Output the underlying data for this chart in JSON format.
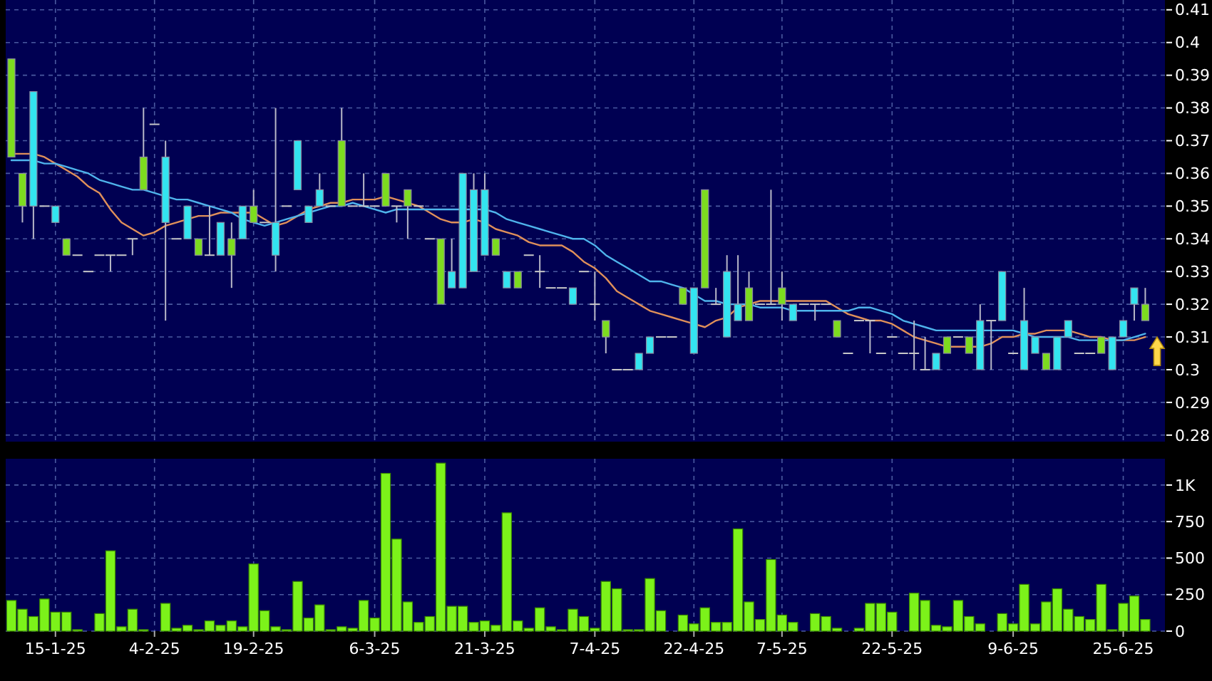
{
  "chart_data": [
    {
      "type": "candlestick",
      "tick_labels": "y",
      "grid": true,
      "colors": [
        "#7ddc1f",
        "#7ddc1f",
        "#33e4f0",
        "#c8c8c8",
        "#33e4f0",
        "#7ddc1f",
        "#c8c8c8",
        "#c8c8c8",
        "#c8c8c8",
        "#c8c8c8",
        "#c8c8c8",
        "#c8c8c8",
        "#7ddc1f",
        "#c8c8c8",
        "#33e4f0",
        "#c8c8c8",
        "#33e4f0",
        "#7ddc1f",
        "#c8c8c8",
        "#33e4f0",
        "#7ddc1f",
        "#33e4f0",
        "#7ddc1f",
        "#c8c8c8",
        "#33e4f0",
        "#c8c8c8",
        "#33e4f0",
        "#33e4f0",
        "#33e4f0",
        "#c8c8c8",
        "#7ddc1f",
        "#c8c8c8",
        "#c8c8c8",
        "#c8c8c8",
        "#7ddc1f",
        "#c8c8c8",
        "#7ddc1f",
        "#c8c8c8",
        "#c8c8c8",
        "#7ddc1f",
        "#33e4f0",
        "#33e4f0",
        "#33e4f0",
        "#33e4f0",
        "#7ddc1f",
        "#33e4f0",
        "#7ddc1f",
        "#c8c8c8",
        "#c8c8c8",
        "#c8c8c8",
        "#c8c8c8",
        "#33e4f0",
        "#c8c8c8",
        "#c8c8c8",
        "#7ddc1f",
        "#c8c8c8",
        "#c8c8c8",
        "#33e4f0",
        "#33e4f0",
        "#c8c8c8",
        "#c8c8c8",
        "#7ddc1f",
        "#33e4f0",
        "#7ddc1f",
        "#c8c8c8",
        "#33e4f0",
        "#33e4f0",
        "#7ddc1f",
        "#c8c8c8",
        "#c8c8c8",
        "#7ddc1f",
        "#33e4f0",
        "#c8c8c8",
        "#c8c8c8",
        "#c8c8c8",
        "#7ddc1f",
        "#c8c8c8",
        "#c8c8c8",
        "#c8c8c8",
        "#c8c8c8",
        "#c8c8c8",
        "#c8c8c8",
        "#c8c8c8",
        "#c8c8c8",
        "#33e4f0",
        "#7ddc1f",
        "#c8c8c8",
        "#7ddc1f",
        "#33e4f0",
        "#c8c8c8",
        "#33e4f0",
        "#c8c8c8",
        "#33e4f0",
        "#33e4f0",
        "#7ddc1f",
        "#33e4f0",
        "#33e4f0",
        "#c8c8c8",
        "#c8c8c8",
        "#7ddc1f",
        "#33e4f0",
        "#33e4f0",
        "#33e4f0",
        "#7ddc1f"
      ],
      "ohlc": [
        [
          0.365,
          0.395,
          0.365,
          0.395
        ],
        [
          0.35,
          0.36,
          0.345,
          0.36
        ],
        [
          0.385,
          0.385,
          0.34,
          0.35
        ],
        [
          0.35,
          0.35,
          0.35,
          0.35
        ],
        [
          0.35,
          0.35,
          0.345,
          0.345
        ],
        [
          0.335,
          0.34,
          0.335,
          0.34
        ],
        [
          0.335,
          0.335,
          0.335,
          0.335
        ],
        [
          0.33,
          0.33,
          0.33,
          0.33
        ],
        [
          0.335,
          0.335,
          0.335,
          0.335
        ],
        [
          0.335,
          0.335,
          0.33,
          0.335
        ],
        [
          0.335,
          0.335,
          0.335,
          0.335
        ],
        [
          0.34,
          0.34,
          0.335,
          0.34
        ],
        [
          0.355,
          0.38,
          0.355,
          0.365
        ],
        [
          0.375,
          0.375,
          0.375,
          0.375
        ],
        [
          0.365,
          0.37,
          0.315,
          0.345
        ],
        [
          0.34,
          0.34,
          0.34,
          0.34
        ],
        [
          0.35,
          0.35,
          0.34,
          0.34
        ],
        [
          0.335,
          0.34,
          0.335,
          0.34
        ],
        [
          0.335,
          0.35,
          0.335,
          0.335
        ],
        [
          0.345,
          0.345,
          0.335,
          0.335
        ],
        [
          0.335,
          0.345,
          0.325,
          0.34
        ],
        [
          0.35,
          0.35,
          0.34,
          0.34
        ],
        [
          0.345,
          0.355,
          0.345,
          0.35
        ],
        [
          0.345,
          0.345,
          0.345,
          0.345
        ],
        [
          0.345,
          0.38,
          0.33,
          0.335
        ],
        [
          0.35,
          0.35,
          0.35,
          0.35
        ],
        [
          0.37,
          0.37,
          0.355,
          0.355
        ],
        [
          0.35,
          0.35,
          0.345,
          0.345
        ],
        [
          0.355,
          0.36,
          0.35,
          0.35
        ],
        [
          0.35,
          0.35,
          0.35,
          0.35
        ],
        [
          0.35,
          0.38,
          0.35,
          0.37
        ],
        [
          0.35,
          0.35,
          0.35,
          0.35
        ],
        [
          0.35,
          0.36,
          0.35,
          0.35
        ],
        [
          0.35,
          0.35,
          0.35,
          0.35
        ],
        [
          0.35,
          0.36,
          0.35,
          0.36
        ],
        [
          0.35,
          0.35,
          0.345,
          0.35
        ],
        [
          0.35,
          0.355,
          0.34,
          0.355
        ],
        [
          0.35,
          0.35,
          0.35,
          0.35
        ],
        [
          0.34,
          0.34,
          0.34,
          0.34
        ],
        [
          0.32,
          0.34,
          0.32,
          0.34
        ],
        [
          0.33,
          0.34,
          0.325,
          0.325
        ],
        [
          0.36,
          0.36,
          0.325,
          0.325
        ],
        [
          0.355,
          0.36,
          0.33,
          0.33
        ],
        [
          0.355,
          0.36,
          0.335,
          0.335
        ],
        [
          0.335,
          0.34,
          0.335,
          0.34
        ],
        [
          0.33,
          0.33,
          0.325,
          0.325
        ],
        [
          0.325,
          0.33,
          0.325,
          0.33
        ],
        [
          0.335,
          0.335,
          0.335,
          0.335
        ],
        [
          0.33,
          0.335,
          0.325,
          0.33
        ],
        [
          0.325,
          0.325,
          0.325,
          0.325
        ],
        [
          0.325,
          0.325,
          0.325,
          0.325
        ],
        [
          0.325,
          0.325,
          0.32,
          0.32
        ],
        [
          0.33,
          0.33,
          0.33,
          0.33
        ],
        [
          0.32,
          0.33,
          0.315,
          0.32
        ],
        [
          0.31,
          0.315,
          0.305,
          0.315
        ],
        [
          0.3,
          0.3,
          0.3,
          0.3
        ],
        [
          0.3,
          0.3,
          0.3,
          0.3
        ],
        [
          0.305,
          0.305,
          0.3,
          0.3
        ],
        [
          0.31,
          0.31,
          0.305,
          0.305
        ],
        [
          0.31,
          0.31,
          0.31,
          0.31
        ],
        [
          0.31,
          0.31,
          0.31,
          0.31
        ],
        [
          0.32,
          0.325,
          0.32,
          0.325
        ],
        [
          0.325,
          0.325,
          0.305,
          0.305
        ],
        [
          0.325,
          0.355,
          0.325,
          0.355
        ],
        [
          0.32,
          0.325,
          0.32,
          0.32
        ],
        [
          0.33,
          0.335,
          0.31,
          0.31
        ],
        [
          0.32,
          0.335,
          0.315,
          0.315
        ],
        [
          0.315,
          0.33,
          0.315,
          0.325
        ],
        [
          0.32,
          0.32,
          0.32,
          0.32
        ],
        [
          0.32,
          0.355,
          0.32,
          0.32
        ],
        [
          0.32,
          0.33,
          0.315,
          0.325
        ],
        [
          0.32,
          0.32,
          0.315,
          0.315
        ],
        [
          0.32,
          0.32,
          0.32,
          0.32
        ],
        [
          0.32,
          0.32,
          0.315,
          0.32
        ],
        [
          0.32,
          0.32,
          0.32,
          0.32
        ],
        [
          0.31,
          0.315,
          0.31,
          0.315
        ],
        [
          0.305,
          0.305,
          0.305,
          0.305
        ],
        [
          0.315,
          0.315,
          0.315,
          0.315
        ],
        [
          0.315,
          0.315,
          0.305,
          0.315
        ],
        [
          0.305,
          0.305,
          0.305,
          0.305
        ],
        [
          0.31,
          0.31,
          0.31,
          0.31
        ],
        [
          0.305,
          0.305,
          0.305,
          0.305
        ],
        [
          0.305,
          0.315,
          0.3,
          0.305
        ],
        [
          0.3,
          0.31,
          0.3,
          0.3
        ],
        [
          0.305,
          0.305,
          0.3,
          0.3
        ],
        [
          0.305,
          0.31,
          0.305,
          0.31
        ],
        [
          0.31,
          0.31,
          0.31,
          0.31
        ],
        [
          0.305,
          0.31,
          0.305,
          0.31
        ],
        [
          0.315,
          0.32,
          0.3,
          0.3
        ],
        [
          0.315,
          0.315,
          0.3,
          0.315
        ],
        [
          0.33,
          0.33,
          0.315,
          0.315
        ],
        [
          0.305,
          0.305,
          0.305,
          0.305
        ],
        [
          0.315,
          0.325,
          0.3,
          0.3
        ],
        [
          0.31,
          0.31,
          0.305,
          0.305
        ],
        [
          0.3,
          0.305,
          0.3,
          0.305
        ],
        [
          0.31,
          0.31,
          0.3,
          0.3
        ],
        [
          0.315,
          0.315,
          0.31,
          0.31
        ],
        [
          0.305,
          0.305,
          0.305,
          0.305
        ],
        [
          0.305,
          0.305,
          0.305,
          0.305
        ],
        [
          0.305,
          0.31,
          0.305,
          0.31
        ],
        [
          0.31,
          0.31,
          0.3,
          0.3
        ],
        [
          0.315,
          0.315,
          0.31,
          0.31
        ],
        [
          0.325,
          0.325,
          0.315,
          0.32
        ],
        [
          0.315,
          0.325,
          0.315,
          0.32
        ]
      ],
      "series": [
        {
          "type": "line",
          "color": "#e0905a",
          "values": [
            0.366,
            0.366,
            0.366,
            0.365,
            0.363,
            0.361,
            0.359,
            0.356,
            0.354,
            0.349,
            0.345,
            0.343,
            0.341,
            0.342,
            0.344,
            0.345,
            0.346,
            0.347,
            0.347,
            0.348,
            0.348,
            0.348,
            0.348,
            0.346,
            0.344,
            0.345,
            0.347,
            0.349,
            0.35,
            0.351,
            0.351,
            0.352,
            0.352,
            0.352,
            0.353,
            0.352,
            0.351,
            0.35,
            0.348,
            0.346,
            0.345,
            0.345,
            0.346,
            0.345,
            0.343,
            0.342,
            0.341,
            0.339,
            0.338,
            0.338,
            0.338,
            0.336,
            0.333,
            0.331,
            0.328,
            0.324,
            0.322,
            0.32,
            0.318,
            0.317,
            0.316,
            0.315,
            0.314,
            0.313,
            0.315,
            0.316,
            0.319,
            0.32,
            0.321,
            0.321,
            0.321,
            0.321,
            0.321,
            0.321,
            0.321,
            0.319,
            0.317,
            0.316,
            0.315,
            0.315,
            0.314,
            0.312,
            0.31,
            0.309,
            0.308,
            0.307,
            0.307,
            0.307,
            0.307,
            0.308,
            0.31,
            0.31,
            0.311,
            0.311,
            0.312,
            0.312,
            0.312,
            0.311,
            0.31,
            0.31,
            0.309,
            0.309,
            0.309,
            0.31
          ]
        },
        {
          "type": "line",
          "color": "#4fb4ec",
          "values": [
            0.364,
            0.364,
            0.364,
            0.363,
            0.363,
            0.362,
            0.361,
            0.36,
            0.358,
            0.357,
            0.356,
            0.355,
            0.355,
            0.354,
            0.353,
            0.352,
            0.352,
            0.351,
            0.35,
            0.349,
            0.348,
            0.346,
            0.345,
            0.344,
            0.345,
            0.346,
            0.347,
            0.348,
            0.349,
            0.35,
            0.35,
            0.351,
            0.35,
            0.349,
            0.348,
            0.349,
            0.349,
            0.349,
            0.349,
            0.349,
            0.349,
            0.349,
            0.349,
            0.349,
            0.348,
            0.346,
            0.345,
            0.344,
            0.343,
            0.342,
            0.341,
            0.34,
            0.34,
            0.338,
            0.335,
            0.333,
            0.331,
            0.329,
            0.327,
            0.327,
            0.326,
            0.325,
            0.323,
            0.321,
            0.321,
            0.32,
            0.32,
            0.32,
            0.319,
            0.319,
            0.319,
            0.318,
            0.318,
            0.318,
            0.318,
            0.318,
            0.318,
            0.319,
            0.319,
            0.318,
            0.317,
            0.315,
            0.314,
            0.313,
            0.312,
            0.312,
            0.312,
            0.312,
            0.312,
            0.312,
            0.312,
            0.312,
            0.311,
            0.31,
            0.31,
            0.31,
            0.31,
            0.309,
            0.309,
            0.309,
            0.309,
            0.309,
            0.31,
            0.311
          ]
        }
      ],
      "ylim": [
        0.278,
        0.413
      ],
      "yticks": [
        0.28,
        0.29,
        0.3,
        0.31,
        0.32,
        0.33,
        0.34,
        0.35,
        0.36,
        0.37,
        0.38,
        0.39,
        0.4,
        0.41
      ]
    },
    {
      "type": "bar",
      "grid": true,
      "color": "#7cf21a",
      "categories": [
        null,
        null,
        null,
        null,
        "15-1-25",
        null,
        null,
        null,
        null,
        null,
        null,
        null,
        null,
        "4-2-25",
        null,
        null,
        null,
        null,
        null,
        null,
        null,
        null,
        "19-2-25",
        null,
        null,
        null,
        null,
        null,
        null,
        null,
        null,
        null,
        null,
        "6-3-25",
        null,
        null,
        null,
        null,
        null,
        null,
        null,
        null,
        null,
        "21-3-25",
        null,
        null,
        null,
        null,
        null,
        null,
        null,
        null,
        null,
        "7-4-25",
        null,
        null,
        null,
        null,
        null,
        null,
        null,
        null,
        "22-4-25",
        null,
        null,
        null,
        null,
        null,
        null,
        null,
        "7-5-25",
        null,
        null,
        null,
        null,
        null,
        null,
        null,
        null,
        null,
        "22-5-25",
        null,
        null,
        null,
        null,
        null,
        null,
        null,
        null,
        null,
        null,
        "9-6-25",
        null,
        null,
        null,
        null,
        null,
        null,
        null,
        null,
        null,
        "25-6-25",
        null,
        null
      ],
      "values": [
        210,
        150,
        100,
        220,
        130,
        130,
        10,
        0,
        120,
        550,
        30,
        150,
        10,
        0,
        190,
        20,
        40,
        10,
        70,
        40,
        70,
        30,
        460,
        140,
        30,
        10,
        340,
        90,
        180,
        10,
        30,
        20,
        210,
        90,
        1080,
        630,
        200,
        60,
        100,
        1150,
        170,
        170,
        60,
        70,
        40,
        810,
        70,
        20,
        160,
        30,
        10,
        150,
        100,
        20,
        340,
        290,
        10,
        10,
        360,
        140,
        0,
        110,
        50,
        160,
        60,
        60,
        700,
        200,
        80,
        490,
        110,
        60,
        0,
        120,
        100,
        20,
        0,
        20,
        190,
        190,
        130,
        0,
        260,
        210,
        40,
        30,
        210,
        100,
        50,
        0,
        120,
        50,
        320,
        50,
        200,
        290,
        150,
        100,
        80,
        320,
        10,
        190,
        240,
        80
      ],
      "ylim": [
        0,
        1180
      ],
      "yticks": [
        0,
        250,
        500,
        750,
        {
          "value": 1000,
          "label": "1K"
        }
      ]
    }
  ]
}
